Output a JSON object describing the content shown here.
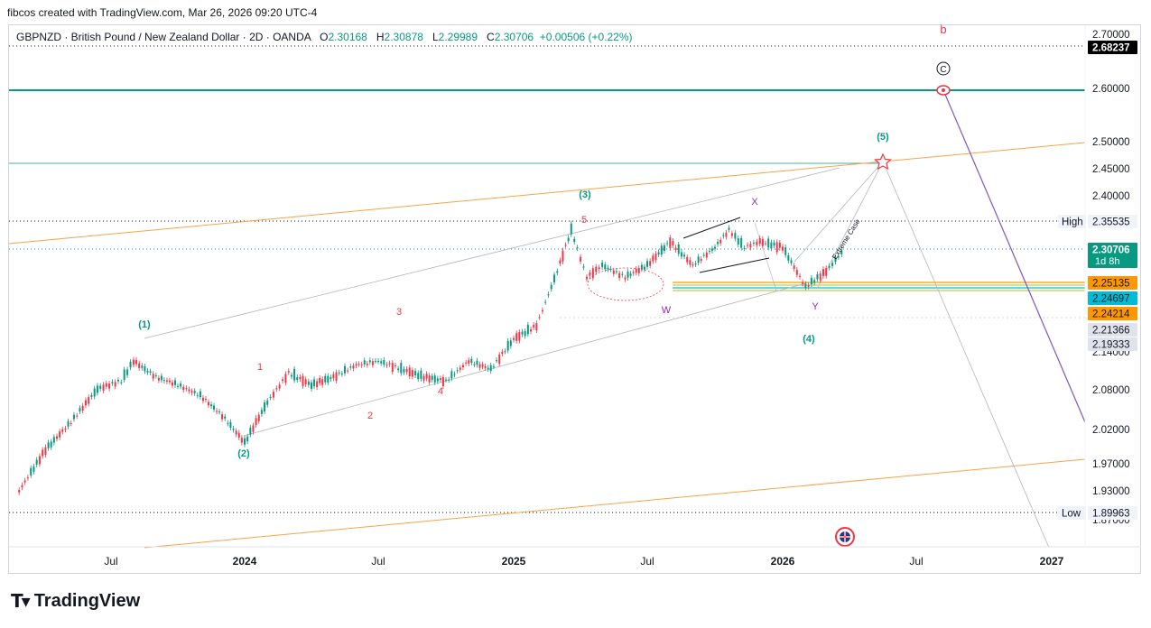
{
  "header": {
    "attribution": "fibcos created with TradingView.com, Mar 26, 2026 09:20 UTC-4"
  },
  "symbol_bar": {
    "title": "GBPNZD · British Pound / New Zealand Dollar · 2D · OANDA",
    "o_label": "O",
    "o": "2.30168",
    "h_label": "H",
    "h": "2.30878",
    "l_label": "L",
    "l": "2.29989",
    "c_label": "C",
    "c": "2.30706",
    "change": "+0.00506 (+0.22%)"
  },
  "chart_data": {
    "type": "line",
    "title": "GBPNZD · British Pound / New Zealand Dollar · 2D · OANDA",
    "x_ticks": [
      "Jul",
      "2024",
      "Jul",
      "2025",
      "Jul",
      "2026",
      "Jul",
      "2027"
    ],
    "y_ticks": [
      "2.70000",
      "2.60000",
      "2.50000",
      "2.45000",
      "2.40000",
      "2.08000",
      "2.02000",
      "1.97000",
      "1.93000"
    ],
    "ylim": [
      1.87,
      2.71
    ],
    "price_series": {
      "name": "GBPNZD",
      "x": [
        "2023-03-15",
        "2023-04-15",
        "2023-05-15",
        "2023-06-15",
        "2023-07-15",
        "2023-08-01",
        "2023-09-01",
        "2023-10-01",
        "2023-11-01",
        "2023-12-01",
        "2024-01-01",
        "2024-02-01",
        "2024-03-01",
        "2024-04-01",
        "2024-05-01",
        "2024-06-01",
        "2024-07-01",
        "2024-08-01",
        "2024-09-01",
        "2024-10-01",
        "2024-11-01",
        "2024-12-01",
        "2025-01-01",
        "2025-02-01",
        "2025-03-01",
        "2025-03-20",
        "2025-04-10",
        "2025-05-01",
        "2025-06-01",
        "2025-07-01",
        "2025-08-01",
        "2025-09-01",
        "2025-10-01",
        "2025-10-20",
        "2025-11-10",
        "2025-12-01",
        "2026-01-01",
        "2026-02-01",
        "2026-03-01",
        "2026-03-26"
      ],
      "y": [
        1.93,
        1.99,
        2.03,
        2.08,
        2.1,
        2.15,
        2.11,
        2.09,
        2.07,
        2.04,
        2.0,
        2.06,
        2.12,
        2.09,
        2.11,
        2.14,
        2.15,
        2.13,
        2.11,
        2.1,
        2.15,
        2.13,
        2.2,
        2.22,
        2.27,
        2.34,
        2.26,
        2.28,
        2.26,
        2.28,
        2.32,
        2.28,
        2.31,
        2.34,
        2.31,
        2.32,
        2.31,
        2.25,
        2.27,
        2.307
      ]
    },
    "price_levels": [
      {
        "label": "",
        "value": "2.68237"
      },
      {
        "label": "High",
        "value": "2.35535"
      },
      {
        "label": "",
        "value": "2.30706",
        "sub": "1d 8h"
      },
      {
        "label": "",
        "value": "2.25135"
      },
      {
        "label": "",
        "value": "2.24697"
      },
      {
        "label": "",
        "value": "2.24214"
      },
      {
        "label": "",
        "value": "2.21366"
      },
      {
        "label": "",
        "value": "2.19333"
      },
      {
        "label": "Low",
        "value": "1.89963"
      }
    ],
    "wave_labels": [
      "(1)",
      "(2)",
      "(3)",
      "(4)",
      "(5)",
      "1",
      "2",
      "3",
      "4",
      "5",
      "W",
      "X",
      "Y",
      "b",
      "C"
    ],
    "annotation_text": "Extreme Case",
    "colors": {
      "up": "#089981",
      "down": "#f23645",
      "green_line": "#089981",
      "orange_line": "#f7a34b",
      "purple_line": "#7e57c2",
      "label_orange": "#ff9800",
      "label_blue": "#00bcd4",
      "label_dark": "#000000",
      "label_price": "#089981"
    }
  },
  "footer": {
    "brand": "TradingView"
  }
}
